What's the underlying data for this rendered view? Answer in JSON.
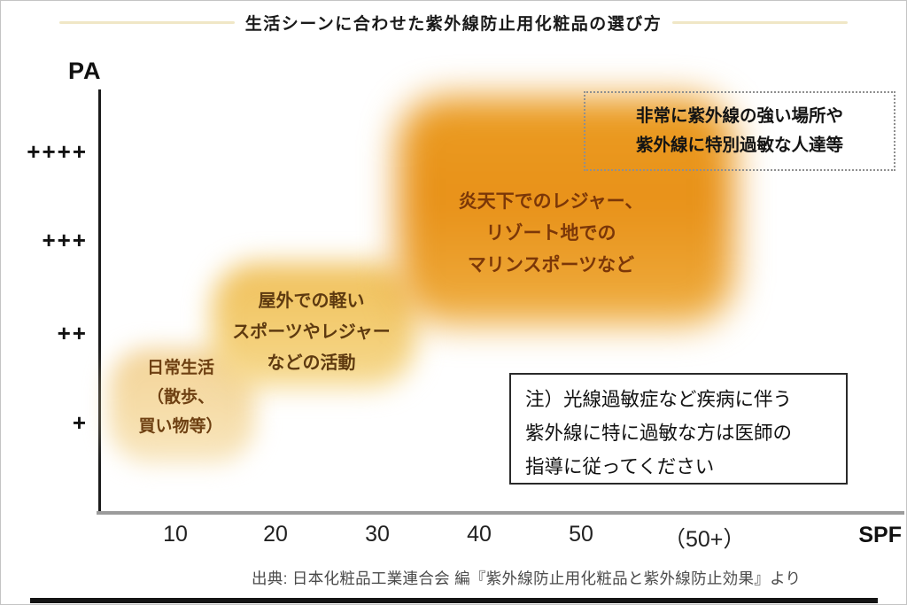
{
  "title": "生活シーンに合わせた紫外線防止用化粧品の選び方",
  "y_axis": {
    "label": "PA",
    "ticks": [
      "++++",
      "+++",
      "++",
      "+"
    ]
  },
  "x_axis": {
    "label": "SPF",
    "ticks": [
      "10",
      "20",
      "30",
      "40",
      "50",
      "（50+）"
    ]
  },
  "regions": [
    {
      "name": "daily-life",
      "lines": [
        "日常生活",
        "（散歩、",
        "買い物等）"
      ]
    },
    {
      "name": "light-outdoor-sports",
      "lines": [
        "屋外での軽い",
        "スポーツやレジャー",
        "などの活動"
      ]
    },
    {
      "name": "blazing-sun-leisure",
      "lines": [
        "炎天下でのレジャー、",
        "リゾート地での",
        "マリンスポーツなど"
      ]
    },
    {
      "name": "very-strong-uv",
      "lines": [
        "非常に紫外線の強い場所や",
        "紫外線に特別過敏な人達等"
      ]
    }
  ],
  "note_box": {
    "lines": [
      "注）光線過敏症など疾病に伴う",
      "紫外線に特に過敏な方は医師の",
      "指導に従ってください"
    ]
  },
  "source": "出典: 日本化粧品工業連合会 編『紫外線防止用化粧品と紫外線防止効果』より",
  "colors": {
    "deep_orange": "#e8921a",
    "amber": "#f0c05a",
    "light_peach": "#f5dca6",
    "region_text_brown": "#6e4012",
    "title_line_tan": "#f0e7c6",
    "x_axis_gray": "#9c9c9c"
  },
  "chart_data": {
    "type": "area",
    "title": "生活シーンに合わせた紫外線防止用化粧品の選び方",
    "xlabel": "SPF",
    "ylabel": "PA",
    "x_ticks": [
      "10",
      "20",
      "30",
      "40",
      "50",
      "(50+)"
    ],
    "y_ticks": [
      "+",
      "++",
      "+++",
      "++++"
    ],
    "grid": false,
    "legend": false,
    "regions": [
      {
        "label": "日常生活（散歩、買い物等）",
        "spf_range": [
          "10",
          "20"
        ],
        "pa_range": [
          "+",
          "++"
        ]
      },
      {
        "label": "屋外での軽いスポーツやレジャーなどの活動",
        "spf_range": [
          "20",
          "30"
        ],
        "pa_range": [
          "++",
          "+++"
        ]
      },
      {
        "label": "炎天下でのレジャー、リゾート地でのマリンスポーツなど",
        "spf_range": [
          "30",
          "50+"
        ],
        "pa_range": [
          "+++",
          "++++"
        ]
      },
      {
        "label": "非常に紫外線の強い場所や紫外線に特別過敏な人達等",
        "spf_range": [
          "50+",
          "50+"
        ],
        "pa_range": [
          "++++",
          "++++"
        ]
      }
    ],
    "note": "注）光線過敏症など疾病に伴う紫外線に特に過敏な方は医師の指導に従ってください",
    "source": "出典: 日本化粧品工業連合会 編『紫外線防止用化粧品と紫外線防止効果』より"
  }
}
